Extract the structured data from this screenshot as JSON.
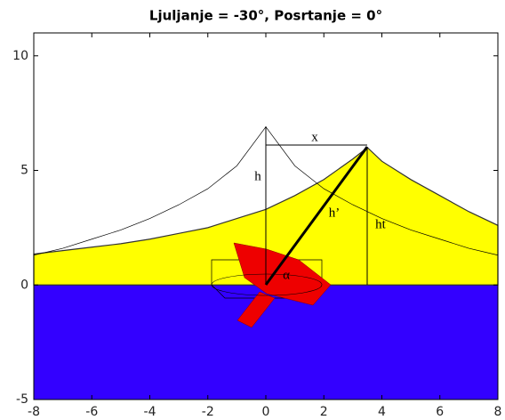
{
  "chart_data": {
    "type": "area",
    "title": "Ljuljanje = -30°, Posrtanje = 0°",
    "x": [
      -8,
      -7,
      -6,
      -5,
      -4,
      -3,
      -2,
      -1,
      0,
      1,
      2,
      3,
      3.5,
      4,
      5,
      6,
      7,
      8
    ],
    "series": [
      {
        "color": "#ffff00",
        "values": [
          1.35,
          1.5,
          1.65,
          1.8,
          2.0,
          2.25,
          2.5,
          2.9,
          3.3,
          3.9,
          4.6,
          5.5,
          6.0,
          5.4,
          4.6,
          3.9,
          3.2,
          2.6
        ]
      },
      {
        "color": "#000000",
        "values": [
          1.3,
          1.6,
          2.0,
          2.4,
          2.9,
          3.5,
          4.2,
          5.2,
          6.9,
          5.2,
          4.2,
          3.5,
          3.2,
          2.9,
          2.4,
          2.0,
          1.6,
          1.3
        ]
      }
    ],
    "water_color": "#3300ff",
    "annotations": [
      "h",
      "x",
      "h’",
      "ht",
      "α"
    ],
    "xlim": [
      -8,
      8
    ],
    "xticks": [
      -8,
      -6,
      -4,
      -2,
      0,
      2,
      4,
      6,
      8
    ],
    "ylim": [
      -5,
      11
    ],
    "yticks": [
      -5,
      0,
      5,
      10
    ]
  }
}
